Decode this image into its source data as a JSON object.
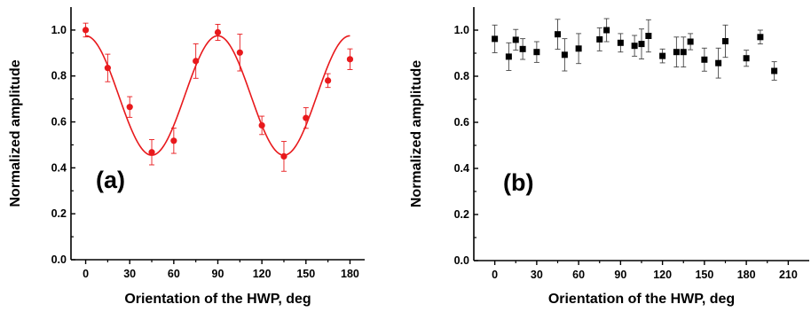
{
  "chart_data": [
    {
      "type": "scatter",
      "panel_label": "(a)",
      "xlabel": "Orientation of the HWP, deg",
      "ylabel": "Normalized amplitude",
      "xlim": [
        -10,
        190
      ],
      "ylim": [
        0.0,
        1.1
      ],
      "xticks": [
        0,
        30,
        60,
        90,
        120,
        150,
        180
      ],
      "yticks": [
        "0.0",
        "0.2",
        "0.4",
        "0.6",
        "0.8",
        "1.0"
      ],
      "grid": false,
      "color": "#e8191c",
      "marker": "circle",
      "fit_curve": {
        "type": "cosine",
        "mean": 0.715,
        "amplitude": 0.26,
        "period_deg": 90
      },
      "series": [
        {
          "x": [
            0,
            15,
            30,
            45,
            60,
            75,
            90,
            105,
            120,
            135,
            150,
            165,
            180
          ],
          "y": [
            1.0,
            0.835,
            0.665,
            0.468,
            0.518,
            0.865,
            0.99,
            0.902,
            0.585,
            0.45,
            0.617,
            0.78,
            0.873
          ],
          "err": [
            0.03,
            0.06,
            0.045,
            0.055,
            0.055,
            0.075,
            0.035,
            0.08,
            0.04,
            0.065,
            0.045,
            0.03,
            0.045
          ]
        }
      ]
    },
    {
      "type": "scatter",
      "panel_label": "(b)",
      "xlabel": "Orientation of the HWP, deg",
      "ylabel": "Normalized amplitude",
      "xlim": [
        -15,
        225
      ],
      "ylim": [
        0.0,
        1.1
      ],
      "xticks": [
        0,
        30,
        60,
        90,
        120,
        150,
        180,
        210
      ],
      "yticks": [
        "0.0",
        "0.2",
        "0.4",
        "0.6",
        "0.8",
        "1.0"
      ],
      "grid": false,
      "color": "#000000",
      "marker": "square",
      "series": [
        {
          "x": [
            0,
            10,
            15,
            20,
            30,
            45,
            50,
            60,
            75,
            80,
            90,
            100,
            105,
            110,
            120,
            130,
            135,
            140,
            150,
            160,
            165,
            180,
            190,
            200
          ],
          "y": [
            0.962,
            0.885,
            0.958,
            0.918,
            0.905,
            0.982,
            0.893,
            0.92,
            0.96,
            1.0,
            0.945,
            0.932,
            0.94,
            0.975,
            0.888,
            0.905,
            0.905,
            0.95,
            0.872,
            0.857,
            0.952,
            0.878,
            0.97,
            0.823
          ],
          "err": [
            0.06,
            0.06,
            0.045,
            0.045,
            0.045,
            0.065,
            0.07,
            0.065,
            0.05,
            0.05,
            0.04,
            0.045,
            0.065,
            0.07,
            0.03,
            0.065,
            0.065,
            0.035,
            0.05,
            0.065,
            0.07,
            0.035,
            0.03,
            0.04
          ]
        }
      ]
    }
  ]
}
